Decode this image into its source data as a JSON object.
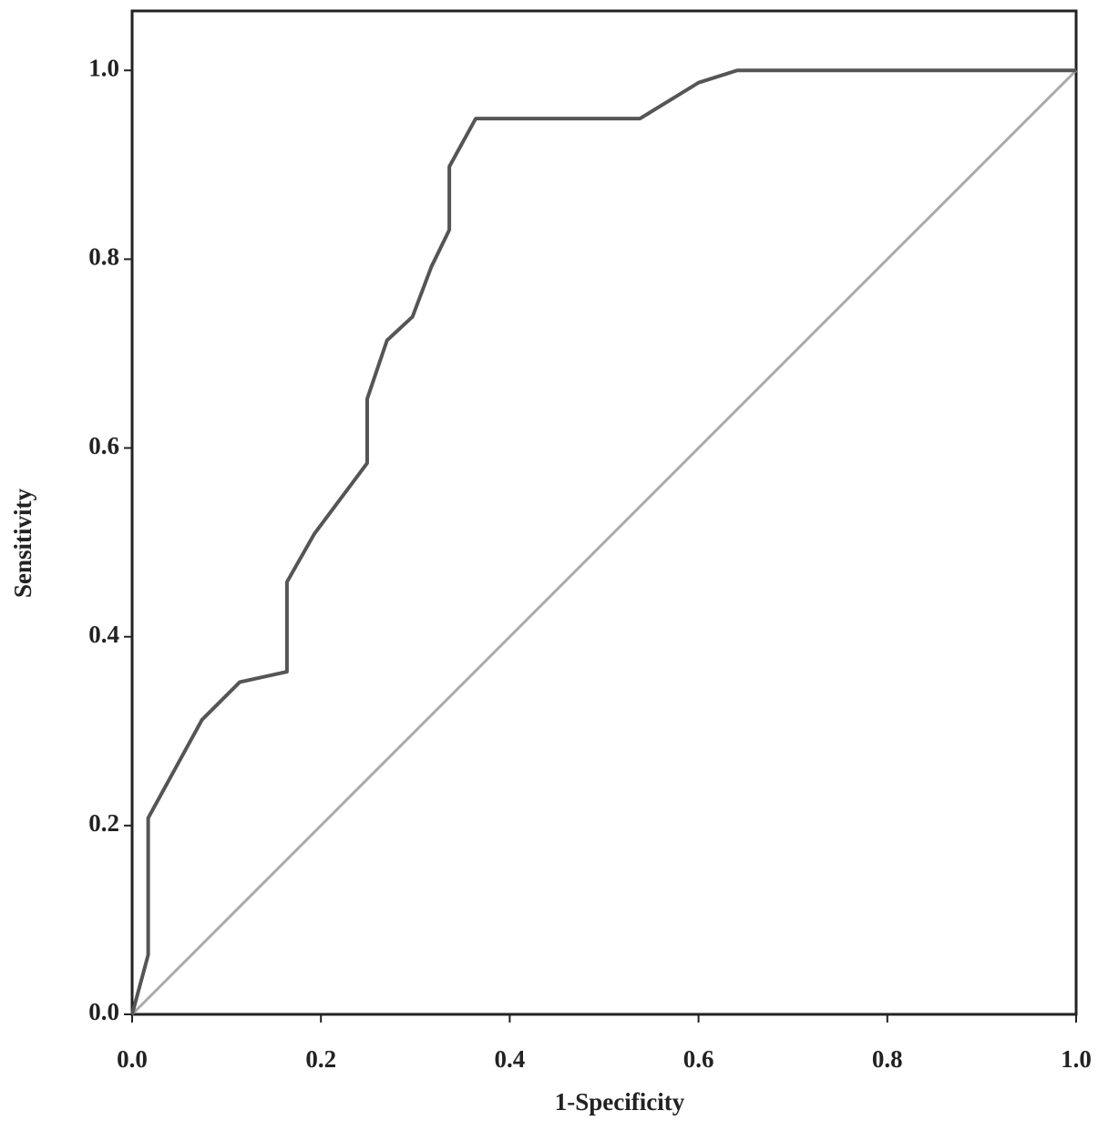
{
  "chart_data": {
    "type": "line",
    "xlabel": "1-Specificity",
    "ylabel": "Sensitivity",
    "xlim": [
      0,
      1
    ],
    "ylim": [
      0,
      1.063
    ],
    "xticks": [
      {
        "value": 0,
        "label": "0.0"
      },
      0.2,
      0.4,
      0.6,
      0.8,
      {
        "value": 1,
        "label": "1.0"
      }
    ],
    "yticks": [
      {
        "value": 0,
        "label": "0.0"
      },
      0.2,
      0.4,
      0.6,
      0.8,
      {
        "value": 1,
        "label": "1.0"
      }
    ],
    "grid": false,
    "series": [
      {
        "color": "#555555",
        "x": [
          0,
          0.017,
          0.017,
          0.074,
          0.114,
          0.164,
          0.164,
          0.193,
          0.249,
          0.249,
          0.27,
          0.297,
          0.317,
          0.336,
          0.336,
          0.364,
          0.538,
          0.6,
          0.641,
          1
        ],
        "values": [
          0,
          0.063,
          0.208,
          0.312,
          0.352,
          0.363,
          0.458,
          0.509,
          0.584,
          0.652,
          0.714,
          0.739,
          0.792,
          0.831,
          0.898,
          0.949,
          0.949,
          0.987,
          1,
          1
        ]
      },
      {
        "color": "#aaaaaa",
        "x": [
          0,
          1
        ],
        "values": [
          0,
          1
        ]
      }
    ]
  }
}
